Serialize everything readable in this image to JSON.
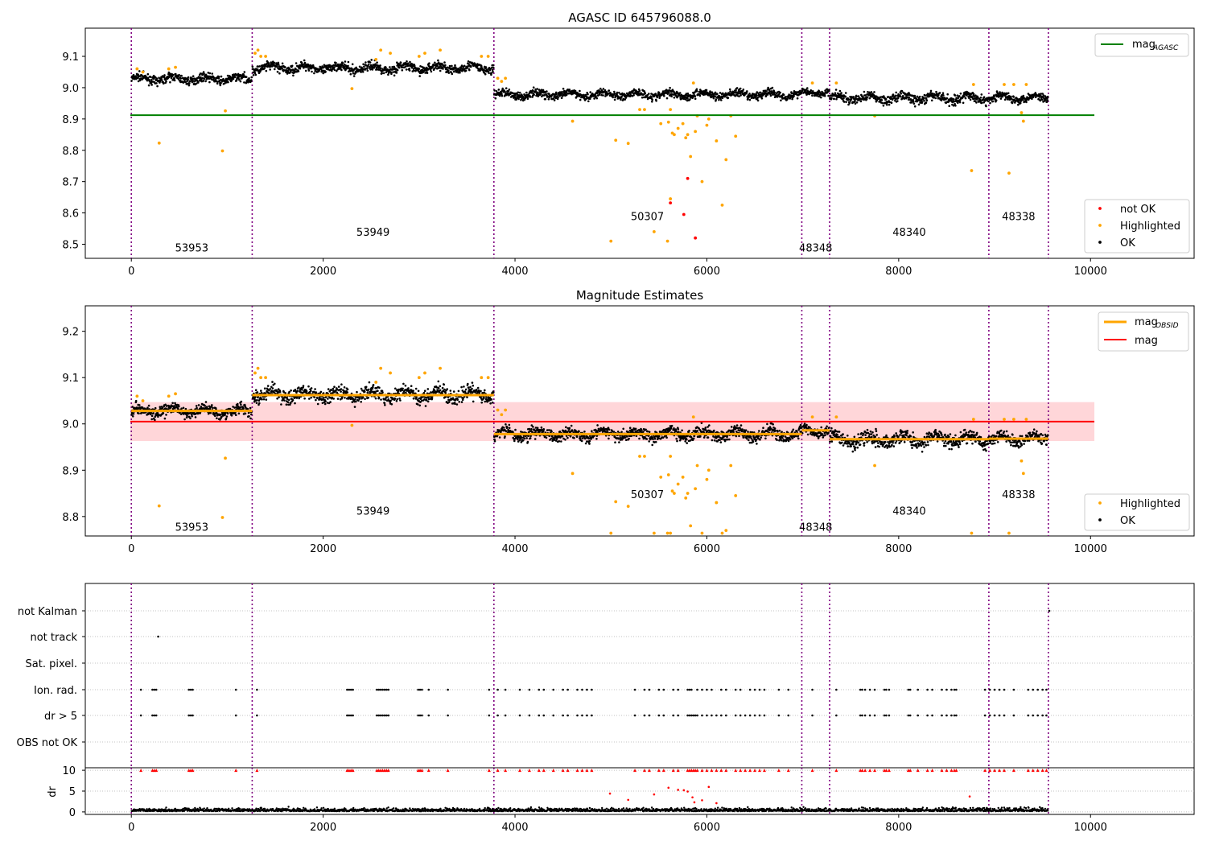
{
  "chart_data": [
    {
      "type": "scatter",
      "title": "AGASC ID 645796088.0",
      "xlim": [
        -480,
        11080
      ],
      "ylim": [
        8.455,
        9.19
      ],
      "xticks": [
        0,
        2000,
        4000,
        6000,
        8000,
        10000
      ],
      "yticks": [
        8.5,
        8.6,
        8.7,
        8.8,
        8.9,
        9.0,
        9.1
      ],
      "colors": {
        "ok": "#000000",
        "highlighted": "#ffa500",
        "not_ok": "#ff0000",
        "mag_agasc": "#008000",
        "obs_boundary": "#800080"
      },
      "obs_boundaries": [
        0,
        1260,
        3780,
        6990,
        7280,
        8940,
        9560
      ],
      "obs_labels": [
        {
          "text": "53953",
          "x": 630,
          "y": 8.49
        },
        {
          "text": "53949",
          "x": 2520,
          "y": 8.54
        },
        {
          "text": "50307",
          "x": 5380,
          "y": 8.59
        },
        {
          "text": "48348",
          "x": 7135,
          "y": 8.49
        },
        {
          "text": "48340",
          "x": 8110,
          "y": 8.54
        },
        {
          "text": "48338",
          "x": 9250,
          "y": 8.59
        }
      ],
      "mag_agasc": 8.912,
      "mag_agasc_xrange": [
        -10,
        10040
      ],
      "ok_segments": [
        {
          "x0": 0,
          "x1": 1260,
          "level": 9.028,
          "noise": 0.012
        },
        {
          "x0": 1260,
          "x1": 3780,
          "level": 9.063,
          "noise": 0.014
        },
        {
          "x0": 3780,
          "x1": 6990,
          "level": 8.978,
          "noise": 0.012
        },
        {
          "x0": 6990,
          "x1": 7280,
          "level": 8.985,
          "noise": 0.01
        },
        {
          "x0": 7280,
          "x1": 8940,
          "level": 8.967,
          "noise": 0.014
        },
        {
          "x0": 8940,
          "x1": 9560,
          "level": 8.968,
          "noise": 0.012
        }
      ],
      "highlighted_points": [
        [
          60,
          9.06
        ],
        [
          120,
          9.05
        ],
        [
          290,
          8.823
        ],
        [
          390,
          9.06
        ],
        [
          460,
          9.065
        ],
        [
          950,
          8.798
        ],
        [
          980,
          8.926
        ],
        [
          1290,
          9.11
        ],
        [
          1320,
          9.12
        ],
        [
          1350,
          9.1
        ],
        [
          1400,
          9.1
        ],
        [
          2300,
          8.997
        ],
        [
          2550,
          9.09
        ],
        [
          2600,
          9.12
        ],
        [
          2700,
          9.11
        ],
        [
          3000,
          9.1
        ],
        [
          3060,
          9.11
        ],
        [
          3220,
          9.12
        ],
        [
          3650,
          9.1
        ],
        [
          3720,
          9.1
        ],
        [
          3820,
          9.03
        ],
        [
          3860,
          9.02
        ],
        [
          3900,
          9.03
        ],
        [
          4600,
          8.893
        ],
        [
          5050,
          8.832
        ],
        [
          5180,
          8.822
        ],
        [
          5300,
          8.93
        ],
        [
          5350,
          8.93
        ],
        [
          5450,
          8.54
        ],
        [
          5520,
          8.885
        ],
        [
          5600,
          8.89
        ],
        [
          5620,
          8.93
        ],
        [
          5640,
          8.855
        ],
        [
          5660,
          8.85
        ],
        [
          5700,
          8.87
        ],
        [
          5750,
          8.885
        ],
        [
          5780,
          8.84
        ],
        [
          5800,
          8.85
        ],
        [
          5830,
          8.78
        ],
        [
          5860,
          9.015
        ],
        [
          5880,
          8.86
        ],
        [
          5900,
          8.91
        ],
        [
          5950,
          8.7
        ],
        [
          6000,
          8.88
        ],
        [
          6020,
          8.9
        ],
        [
          6100,
          8.83
        ],
        [
          6160,
          8.625
        ],
        [
          6200,
          8.77
        ],
        [
          6300,
          8.845
        ],
        [
          6250,
          8.91
        ],
        [
          5590,
          8.51
        ],
        [
          5000,
          8.51
        ],
        [
          5620,
          8.645
        ],
        [
          7100,
          9.015
        ],
        [
          7350,
          9.015
        ],
        [
          7750,
          8.91
        ],
        [
          8760,
          8.735
        ],
        [
          8780,
          9.01
        ],
        [
          9100,
          9.01
        ],
        [
          9150,
          8.727
        ],
        [
          9200,
          9.01
        ],
        [
          9280,
          8.92
        ],
        [
          9300,
          8.893
        ],
        [
          9330,
          9.01
        ]
      ],
      "not_ok_points": [
        [
          5620,
          8.632
        ],
        [
          5760,
          8.595
        ],
        [
          5800,
          8.71
        ],
        [
          5880,
          8.52
        ]
      ],
      "legend_upper": [
        {
          "label": "mag",
          "sub": "AGASC"
        }
      ],
      "legend_lower": [
        {
          "label": "not OK"
        },
        {
          "label": "Highlighted"
        },
        {
          "label": "OK"
        }
      ]
    },
    {
      "type": "scatter",
      "title": "Magnitude Estimates",
      "xlim": [
        -480,
        11080
      ],
      "ylim": [
        8.758,
        9.255
      ],
      "xticks": [
        0,
        2000,
        4000,
        6000,
        8000,
        10000
      ],
      "yticks": [
        8.8,
        8.9,
        9.0,
        9.1,
        9.2
      ],
      "colors": {
        "ok": "#000000",
        "highlighted": "#ffa500",
        "mag_obsid": "#ffa500",
        "mag": "#ff0000",
        "band": "#ffd6d9",
        "obs_boundary": "#800080"
      },
      "obs_boundaries": [
        0,
        1260,
        3780,
        6990,
        7280,
        8940,
        9560
      ],
      "obs_labels": [
        {
          "text": "53953",
          "x": 630,
          "y": 8.778
        },
        {
          "text": "53949",
          "x": 2520,
          "y": 8.813
        },
        {
          "text": "50307",
          "x": 5380,
          "y": 8.848
        },
        {
          "text": "48348",
          "x": 7135,
          "y": 8.778
        },
        {
          "text": "48340",
          "x": 8110,
          "y": 8.813
        },
        {
          "text": "48338",
          "x": 9250,
          "y": 8.848
        }
      ],
      "mag": 9.005,
      "mag_band": [
        8.963,
        9.047
      ],
      "mag_xrange": [
        -10,
        10040
      ],
      "mag_obsid_segments": [
        {
          "x0": 0,
          "x1": 1260,
          "level": 9.028
        },
        {
          "x0": 1260,
          "x1": 3780,
          "level": 9.062
        },
        {
          "x0": 3780,
          "x1": 6990,
          "level": 8.978
        },
        {
          "x0": 6990,
          "x1": 7280,
          "level": 8.986
        },
        {
          "x0": 7280,
          "x1": 8940,
          "level": 8.967
        },
        {
          "x0": 8940,
          "x1": 9560,
          "level": 8.968
        }
      ],
      "legend_upper": [
        {
          "label": "mag",
          "sub": "OBSID"
        },
        {
          "label": "mag"
        }
      ],
      "legend_lower": [
        {
          "label": "Highlighted"
        },
        {
          "label": "OK"
        }
      ]
    },
    {
      "type": "scatter",
      "xlim": [
        -480,
        11080
      ],
      "xticks": [
        0,
        2000,
        4000,
        6000,
        8000,
        10000
      ],
      "categories": [
        "not Kalman",
        "not track",
        "Sat. pixel.",
        "Ion. rad.",
        "dr > 5",
        "OBS not OK"
      ],
      "flag_points": {
        "not track": [
          280
        ],
        "not Kalman": [
          9570
        ],
        "Ion. rad.": [
          100,
          220,
          240,
          260,
          600,
          620,
          640,
          1090,
          1310,
          2250,
          2270,
          2290,
          2310,
          2560,
          2580,
          2600,
          2620,
          2640,
          2660,
          2680,
          2990,
          3010,
          3030,
          3100,
          3300,
          3730,
          3820,
          3900,
          4050,
          4150,
          4250,
          4300,
          4400,
          4500,
          4550,
          4650,
          4700,
          4750,
          4800,
          5250,
          5350,
          5400,
          5500,
          5550,
          5650,
          5700,
          5800,
          5820,
          5840,
          5900,
          5950,
          6000,
          6050,
          6150,
          6200,
          6300,
          6350,
          6450,
          6500,
          6550,
          6600,
          6750,
          6850,
          7100,
          7350,
          7600,
          7620,
          7650,
          7700,
          7750,
          7850,
          7870,
          7900,
          8100,
          8120,
          8200,
          8300,
          8350,
          8450,
          8500,
          8550,
          8580,
          8600,
          8900,
          8950,
          9000,
          9050,
          9100,
          9200,
          9350,
          9400,
          9450,
          9500,
          9540
        ],
        "dr > 5": [
          100,
          220,
          240,
          260,
          600,
          620,
          640,
          1090,
          1310,
          2250,
          2270,
          2290,
          2310,
          2560,
          2580,
          2600,
          2620,
          2640,
          2660,
          2680,
          2990,
          3010,
          3030,
          3100,
          3300,
          3730,
          3820,
          3900,
          4050,
          4150,
          4250,
          4300,
          4400,
          4500,
          4550,
          4650,
          4700,
          4750,
          4800,
          5250,
          5350,
          5400,
          5500,
          5550,
          5650,
          5700,
          5800,
          5820,
          5840,
          5860,
          5880,
          5900,
          5950,
          6000,
          6050,
          6100,
          6150,
          6200,
          6300,
          6350,
          6400,
          6450,
          6500,
          6550,
          6600,
          6750,
          6850,
          7100,
          7350,
          7600,
          7620,
          7650,
          7700,
          7750,
          7850,
          7870,
          7900,
          8100,
          8120,
          8200,
          8300,
          8350,
          8450,
          8500,
          8550,
          8580,
          8600,
          8900,
          8950,
          9000,
          9050,
          9100,
          9200,
          9350,
          9400,
          9450,
          9500,
          9540
        ]
      },
      "colors": {
        "ok": "#000000",
        "flag": "#ff0000",
        "obs_boundary": "#800080"
      },
      "obs_boundaries": [
        0,
        1260,
        3780,
        6990,
        7280,
        8940,
        9560
      ]
    },
    {
      "type": "scatter",
      "ylabel": "dr",
      "xlim": [
        -480,
        11080
      ],
      "ylim": [
        -0.6,
        10.6
      ],
      "xticks": [
        0,
        2000,
        4000,
        6000,
        8000,
        10000
      ],
      "yticks": [
        0,
        5,
        10
      ],
      "clip_value": 10,
      "high_points": [
        [
          4990,
          4.4
        ],
        [
          5180,
          2.9
        ],
        [
          5450,
          4.2
        ],
        [
          5600,
          5.8
        ],
        [
          5700,
          5.3
        ],
        [
          5760,
          5.2
        ],
        [
          5800,
          4.9
        ],
        [
          5850,
          3.5
        ],
        [
          5870,
          2.3
        ],
        [
          5950,
          2.8
        ],
        [
          6020,
          6.0
        ],
        [
          6100,
          2.1
        ],
        [
          8740,
          3.7
        ]
      ],
      "colors": {
        "ok": "#000000",
        "high": "#ff0000",
        "obs_boundary": "#800080"
      },
      "obs_boundaries": [
        0,
        1260,
        3780,
        6990,
        7280,
        8940,
        9560
      ]
    }
  ]
}
